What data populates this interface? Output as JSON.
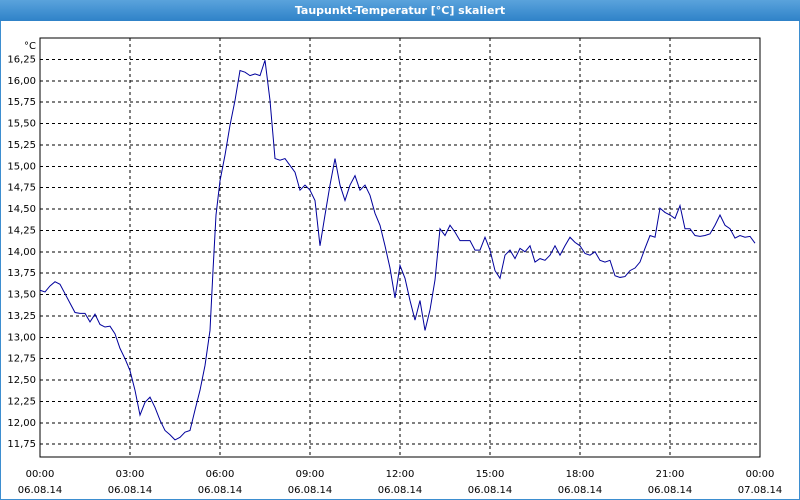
{
  "window_title": "Taupunkt-Temperatur [°C] skaliert",
  "chart_data": {
    "type": "line",
    "y_unit": "°C",
    "x": [
      0,
      10,
      20,
      30,
      40,
      50,
      60,
      70,
      80,
      90,
      100,
      110,
      120,
      130,
      140,
      150,
      160,
      170,
      180,
      190,
      200,
      210,
      220,
      230,
      240,
      250,
      260,
      270,
      280,
      290,
      300,
      310,
      320,
      330,
      340,
      346,
      352,
      360,
      370,
      380,
      390,
      400,
      410,
      420,
      430,
      440,
      450,
      460,
      470,
      480,
      490,
      500,
      510,
      520,
      530,
      540,
      550,
      560,
      570,
      580,
      590,
      600,
      610,
      620,
      630,
      640,
      650,
      660,
      670,
      680,
      690,
      700,
      710,
      720,
      730,
      740,
      750,
      760,
      770,
      780,
      790,
      800,
      810,
      820,
      830,
      840,
      850,
      860,
      870,
      880,
      890,
      900,
      910,
      920,
      930,
      940,
      950,
      960,
      970,
      980,
      990,
      1000,
      1010,
      1020,
      1030,
      1040,
      1050,
      1060,
      1070,
      1080,
      1090,
      1100,
      1110,
      1120,
      1130,
      1140,
      1150,
      1160,
      1170,
      1180,
      1190,
      1200,
      1210,
      1220,
      1230,
      1240,
      1250,
      1260,
      1270,
      1280,
      1290,
      1300,
      1310,
      1320,
      1330,
      1340,
      1350,
      1360,
      1370,
      1380,
      1390,
      1400,
      1410,
      1420,
      1430
    ],
    "series": [
      {
        "color": "#00009c",
        "values": [
          13.55,
          13.53,
          13.6,
          13.65,
          13.62,
          13.51,
          13.4,
          13.29,
          13.28,
          13.28,
          13.18,
          13.27,
          13.15,
          13.12,
          13.13,
          13.04,
          12.87,
          12.75,
          12.61,
          12.38,
          12.09,
          12.24,
          12.3,
          12.18,
          12.03,
          11.91,
          11.86,
          11.8,
          11.83,
          11.89,
          11.91,
          12.15,
          12.38,
          12.67,
          13.08,
          13.78,
          14.43,
          14.83,
          15.13,
          15.48,
          15.77,
          16.12,
          16.1,
          16.06,
          16.08,
          16.06,
          16.24,
          15.77,
          15.09,
          15.07,
          15.09,
          15.01,
          14.93,
          14.72,
          14.78,
          14.72,
          14.6,
          14.07,
          14.43,
          14.78,
          15.09,
          14.78,
          14.6,
          14.78,
          14.89,
          14.72,
          14.78,
          14.66,
          14.45,
          14.31,
          14.07,
          13.81,
          13.46,
          13.84,
          13.69,
          13.43,
          13.2,
          13.43,
          13.08,
          13.32,
          13.67,
          14.27,
          14.19,
          14.31,
          14.23,
          14.13,
          14.13,
          14.13,
          14.02,
          14.02,
          14.17,
          14.02,
          13.78,
          13.69,
          13.96,
          14.02,
          13.92,
          14.04,
          14.0,
          14.07,
          13.88,
          13.92,
          13.9,
          13.96,
          14.07,
          13.96,
          14.07,
          14.17,
          14.11,
          14.07,
          13.98,
          13.96,
          14.0,
          13.9,
          13.88,
          13.9,
          13.72,
          13.7,
          13.71,
          13.78,
          13.81,
          13.88,
          14.04,
          14.19,
          14.17,
          14.51,
          14.46,
          14.43,
          14.39,
          14.54,
          14.27,
          14.27,
          14.19,
          14.18,
          14.19,
          14.21,
          14.31,
          14.43,
          14.31,
          14.27,
          14.16,
          14.19,
          14.17,
          14.18,
          14.1
        ]
      }
    ],
    "xlim": [
      0,
      1440
    ],
    "xticks": [
      {
        "value": 0,
        "label": "00:00"
      },
      {
        "value": 180,
        "label": "03:00"
      },
      {
        "value": 360,
        "label": "06:00"
      },
      {
        "value": 540,
        "label": "09:00"
      },
      {
        "value": 720,
        "label": "12:00"
      },
      {
        "value": 900,
        "label": "15:00"
      },
      {
        "value": 1080,
        "label": "18:00"
      },
      {
        "value": 1260,
        "label": "21:00"
      },
      {
        "value": 1440,
        "label": "00:00"
      }
    ],
    "xtick_dates": [
      "06.08.14",
      "06.08.14",
      "06.08.14",
      "06.08.14",
      "06.08.14",
      "06.08.14",
      "06.08.14",
      "06.08.14",
      "07.08.14"
    ],
    "ylim": [
      11.6,
      16.5
    ],
    "yticks": [
      {
        "value": 11.75,
        "label": "11,75"
      },
      {
        "value": 12,
        "label": "12,00"
      },
      {
        "value": 12.25,
        "label": "12,25"
      },
      {
        "value": 12.5,
        "label": "12,50"
      },
      {
        "value": 12.75,
        "label": "12,75"
      },
      {
        "value": 13,
        "label": "13,00"
      },
      {
        "value": 13.25,
        "label": "13,25"
      },
      {
        "value": 13.5,
        "label": "13,50"
      },
      {
        "value": 13.75,
        "label": "13,75"
      },
      {
        "value": 14,
        "label": "14,00"
      },
      {
        "value": 14.25,
        "label": "14,25"
      },
      {
        "value": 14.5,
        "label": "14,50"
      },
      {
        "value": 14.75,
        "label": "14,75"
      },
      {
        "value": 15,
        "label": "15,00"
      },
      {
        "value": 15.25,
        "label": "15,25"
      },
      {
        "value": 15.5,
        "label": "15,50"
      },
      {
        "value": 15.75,
        "label": "15,75"
      },
      {
        "value": 16,
        "label": "16,00"
      },
      {
        "value": 16.25,
        "label": "16,25"
      }
    ],
    "grid": true
  }
}
